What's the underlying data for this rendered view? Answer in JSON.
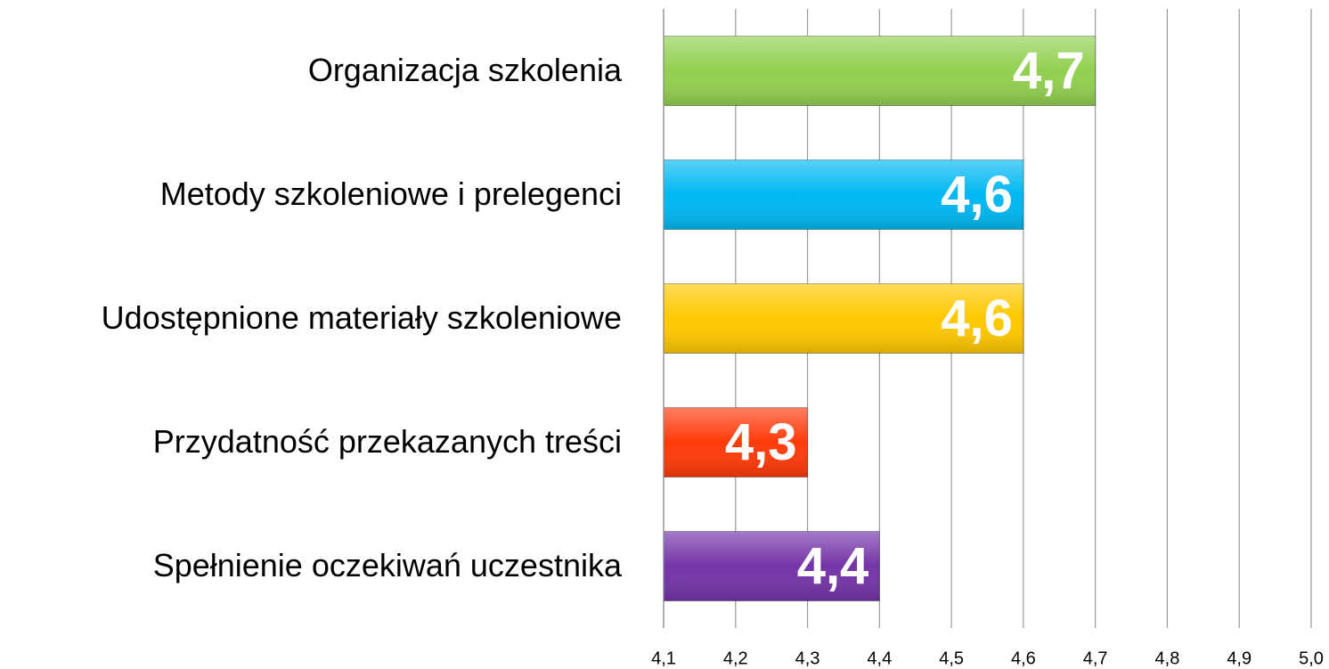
{
  "chart_data": {
    "type": "bar",
    "orientation": "horizontal",
    "categories": [
      "Organizacja szkolenia",
      "Metody szkoleniowe i prelegenci",
      "Udostępnione materiały szkoleniowe",
      "Przydatność przekazanych treści",
      "Spełnienie oczekiwań uczestnika"
    ],
    "values": [
      4.7,
      4.6,
      4.6,
      4.3,
      4.4
    ],
    "value_labels": [
      "4,7",
      "4,6",
      "4,6",
      "4,3",
      "4,4"
    ],
    "colors": [
      "#92d050",
      "#00b8f2",
      "#ffc800",
      "#ff3a0a",
      "#7434a8"
    ],
    "xlim": [
      4.1,
      5.0
    ],
    "xticks": [
      {
        "value": 4.1,
        "label": "4,1"
      },
      {
        "value": 4.2,
        "label": "4,2"
      },
      {
        "value": 4.3,
        "label": "4,3"
      },
      {
        "value": 4.4,
        "label": "4,4"
      },
      {
        "value": 4.5,
        "label": "4,5"
      },
      {
        "value": 4.6,
        "label": "4,6"
      },
      {
        "value": 4.7,
        "label": "4,7"
      },
      {
        "value": 4.8,
        "label": "4,8"
      },
      {
        "value": 4.9,
        "label": "4,9"
      },
      {
        "value": 5.0,
        "label": "5,0"
      }
    ],
    "grid": true
  }
}
